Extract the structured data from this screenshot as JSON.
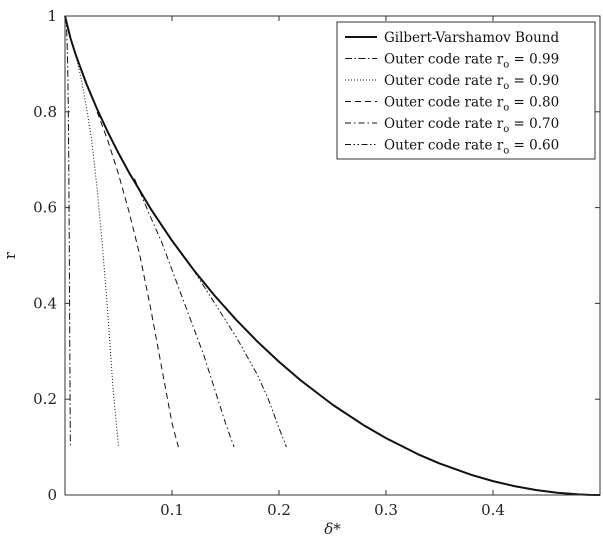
{
  "chart_data": {
    "type": "line",
    "xlabel": "δ*",
    "ylabel": "r",
    "xlim": [
      0,
      0.5
    ],
    "ylim": [
      0,
      1
    ],
    "x_ticks": [
      {
        "value": 0.1,
        "label": "0.1"
      },
      {
        "value": 0.2,
        "label": "0.2"
      },
      {
        "value": 0.3,
        "label": "0.3"
      },
      {
        "value": 0.4,
        "label": "0.4"
      }
    ],
    "y_ticks": [
      {
        "value": 0,
        "label": "0"
      },
      {
        "value": 0.2,
        "label": "0.2"
      },
      {
        "value": 0.4,
        "label": "0.4"
      },
      {
        "value": 0.6,
        "label": "0.6"
      },
      {
        "value": 0.8,
        "label": "0.8"
      },
      {
        "value": 1,
        "label": "1"
      }
    ],
    "grid": false,
    "legend_position": "top-right",
    "series": [
      {
        "name": "Gilbert-Varshamov Bound",
        "style": "solid",
        "x": [
          0.0,
          0.005,
          0.01,
          0.02,
          0.03,
          0.04,
          0.05,
          0.06,
          0.08,
          0.1,
          0.12,
          0.14,
          0.16,
          0.18,
          0.2,
          0.22,
          0.25,
          0.28,
          0.3,
          0.33,
          0.35,
          0.38,
          0.4,
          0.42,
          0.44,
          0.46,
          0.48,
          0.49,
          0.5
        ],
        "y": [
          1.0,
          0.9546,
          0.9192,
          0.8586,
          0.8056,
          0.7577,
          0.7136,
          0.6726,
          0.5978,
          0.531,
          0.4706,
          0.4157,
          0.3657,
          0.3199,
          0.2781,
          0.2398,
          0.1887,
          0.1445,
          0.1187,
          0.085,
          0.0659,
          0.0419,
          0.029,
          0.0185,
          0.0104,
          0.0046,
          0.0012,
          0.0003,
          0.0
        ]
      },
      {
        "name": "Outer code rate r_o = 0.99",
        "legend_main": "Outer code rate r",
        "legend_sub": "o",
        "legend_tail": " = 0.99",
        "style": "dashdot",
        "x": [
          0.0005,
          0.001,
          0.0015,
          0.002,
          0.0025,
          0.003,
          0.0035,
          0.004,
          0.0045,
          0.005
        ],
        "y": [
          1.0,
          0.99,
          0.97,
          0.94,
          0.9,
          0.82,
          0.7,
          0.52,
          0.3,
          0.1
        ]
      },
      {
        "name": "Outer code rate r_o = 0.90",
        "legend_main": "Outer code rate r",
        "legend_sub": "o",
        "legend_tail": " = 0.90",
        "style": "dotted",
        "x": [
          0.01,
          0.015,
          0.02,
          0.025,
          0.03,
          0.035,
          0.04,
          0.045,
          0.05
        ],
        "y": [
          0.92,
          0.87,
          0.81,
          0.74,
          0.64,
          0.52,
          0.38,
          0.22,
          0.1
        ]
      },
      {
        "name": "Outer code rate r_o = 0.80",
        "legend_main": "Outer code rate r",
        "legend_sub": "o",
        "legend_tail": " = 0.80",
        "style": "dashed",
        "x": [
          0.03,
          0.04,
          0.05,
          0.06,
          0.07,
          0.08,
          0.09,
          0.1,
          0.106
        ],
        "y": [
          0.8,
          0.74,
          0.67,
          0.59,
          0.5,
          0.39,
          0.27,
          0.15,
          0.1
        ]
      },
      {
        "name": "Outer code rate r_o = 0.70",
        "legend_main": "Outer code rate r",
        "legend_sub": "o",
        "legend_tail": " = 0.70",
        "style": "dashdotted",
        "x": [
          0.065,
          0.08,
          0.09,
          0.1,
          0.11,
          0.12,
          0.13,
          0.14,
          0.15,
          0.158
        ],
        "y": [
          0.66,
          0.58,
          0.53,
          0.47,
          0.41,
          0.35,
          0.29,
          0.22,
          0.15,
          0.1
        ]
      },
      {
        "name": "Outer code rate r_o = 0.60",
        "legend_main": "Outer code rate r",
        "legend_sub": "o",
        "legend_tail": " = 0.60",
        "style": "dashdotdotted",
        "x": [
          0.12,
          0.14,
          0.16,
          0.18,
          0.19,
          0.2,
          0.207
        ],
        "y": [
          0.47,
          0.4,
          0.33,
          0.25,
          0.2,
          0.14,
          0.1
        ]
      }
    ]
  }
}
